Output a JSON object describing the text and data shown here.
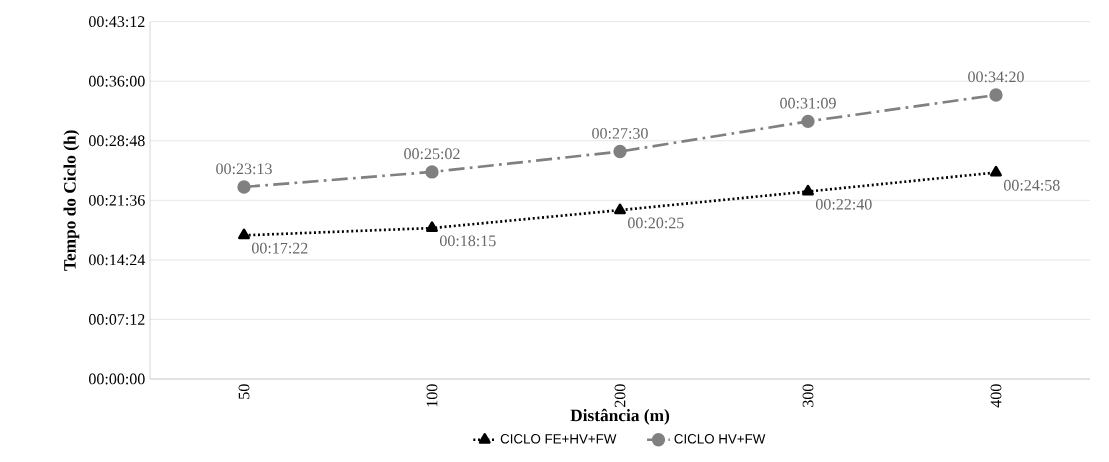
{
  "chart_data": {
    "type": "line",
    "xlabel": "Distância (m)",
    "ylabel": "Tempo do Ciclo (h)",
    "categories": [
      "50",
      "100",
      "200",
      "300",
      "400"
    ],
    "series": [
      {
        "name": "CICLO FE+HV+FW",
        "color": "#000000",
        "marker": "triangle",
        "line_style": "dotted",
        "values": [
          0.289444,
          0.304167,
          0.340278,
          0.377778,
          0.416111
        ],
        "value_labels": [
          "00:17:22",
          "00:18:15",
          "00:20:25",
          "00:22:40",
          "00:24:58"
        ]
      },
      {
        "name": "CICLO HV+FW",
        "color": "#808080",
        "marker": "circle",
        "line_style": "dashdot",
        "values": [
          0.386944,
          0.417222,
          0.458333,
          0.519167,
          0.572222
        ],
        "value_labels": [
          "00:23:13",
          "00:25:02",
          "00:27:30",
          "00:31:09",
          "00:34:20"
        ]
      }
    ],
    "ylim": [
      0,
      0.72
    ],
    "yticks": [
      {
        "value": 0,
        "label": "00:00:00"
      },
      {
        "value": 0.12,
        "label": "00:07:12"
      },
      {
        "value": 0.24,
        "label": "00:14:24"
      },
      {
        "value": 0.36,
        "label": "00:21:36"
      },
      {
        "value": 0.48,
        "label": "00:28:48"
      },
      {
        "value": 0.6,
        "label": "00:36:00"
      },
      {
        "value": 0.72,
        "label": "00:43:12"
      }
    ],
    "grid": "y",
    "legend": "bottom"
  }
}
